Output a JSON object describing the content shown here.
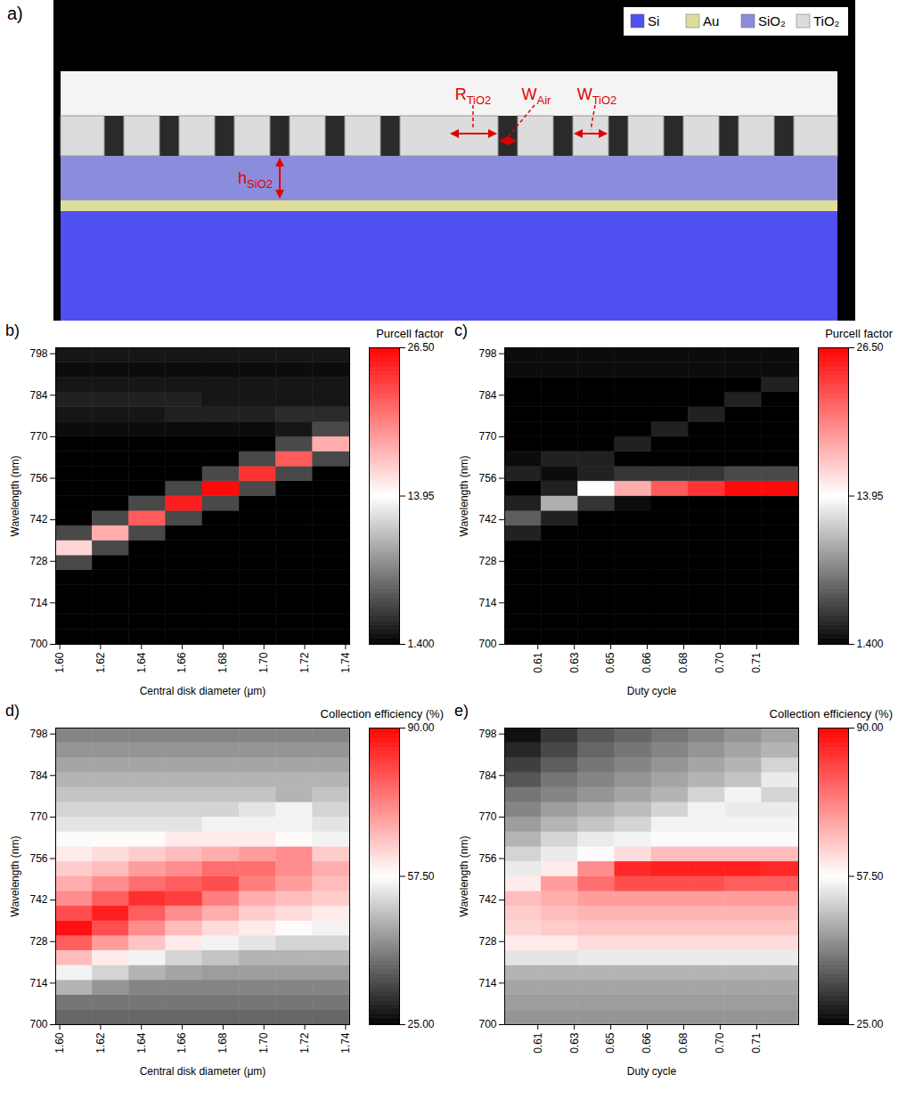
{
  "diagram": {
    "label": "a)",
    "legend": [
      {
        "label": "Si",
        "color": "#5050f0"
      },
      {
        "label": "Au",
        "color": "#dede9a"
      },
      {
        "label": "SiO₂",
        "color": "#8c8cdc"
      },
      {
        "label": "TiO₂",
        "color": "#dcdcdc"
      }
    ],
    "dimensions": [
      {
        "symbol": "R",
        "subscript": "TiO2"
      },
      {
        "symbol": "W",
        "subscript": "Air"
      },
      {
        "symbol": "W",
        "subscript": "TiO2"
      },
      {
        "symbol": "h",
        "subscript": "SiO2"
      }
    ]
  },
  "chart_data": [
    {
      "type": "heatmap",
      "panel_label": "b)",
      "title": "Purcell factor",
      "x_label": "Central disk diameter (μm)",
      "y_label": "Wavelength (nm)",
      "xlim": [
        1.598,
        1.742
      ],
      "xticks": [
        {
          "value": 1.6,
          "label": "1.60"
        },
        1.62,
        1.64,
        1.66,
        1.68,
        {
          "value": 1.7,
          "label": "1.70"
        },
        1.72,
        1.74
      ],
      "ylim": [
        700,
        800
      ],
      "yticks": [
        700,
        714,
        728,
        742,
        756,
        770,
        784,
        798
      ],
      "color_range": [
        1.4,
        26.5
      ],
      "color_ticks": [
        {
          "value": 1.4,
          "label": "1.400"
        },
        13.95,
        {
          "value": 26.5,
          "label": "26.50"
        }
      ],
      "cells": {
        "x_edges": [
          1.598,
          1.616,
          1.634,
          1.652,
          1.67,
          1.688,
          1.706,
          1.724,
          1.742
        ],
        "y_edges": [
          700,
          705,
          710,
          715,
          720,
          725,
          730,
          735,
          740,
          745,
          750,
          755,
          760,
          765,
          770,
          775,
          780,
          785,
          790,
          795,
          800
        ],
        "values": [
          [
            1.4,
            1.4,
            1.4,
            1.4,
            1.4,
            1.4,
            1.4,
            1.4
          ],
          [
            1.4,
            1.4,
            1.4,
            1.4,
            1.4,
            1.4,
            1.4,
            1.4
          ],
          [
            1.4,
            1.4,
            1.4,
            1.4,
            1.4,
            1.4,
            1.4,
            1.4
          ],
          [
            1.4,
            1.4,
            1.4,
            1.4,
            1.4,
            1.4,
            1.4,
            1.4
          ],
          [
            1.4,
            1.4,
            1.4,
            1.4,
            1.4,
            1.4,
            1.4,
            1.4
          ],
          [
            5,
            1.4,
            1.4,
            1.4,
            1.4,
            1.4,
            1.4,
            1.4
          ],
          [
            16,
            5,
            1.4,
            1.4,
            1.4,
            1.4,
            1.4,
            1.4
          ],
          [
            5,
            18,
            5,
            1.4,
            1.4,
            1.4,
            1.4,
            1.4
          ],
          [
            1.4,
            5,
            22,
            5,
            1.4,
            1.4,
            1.4,
            1.4
          ],
          [
            1.4,
            1.4,
            5,
            25,
            5,
            1.4,
            1.4,
            1.4
          ],
          [
            1.4,
            1.4,
            1.4,
            5,
            26,
            5,
            1.4,
            1.4
          ],
          [
            1.4,
            1.4,
            1.4,
            1.4,
            5,
            24,
            5,
            1.4
          ],
          [
            1.4,
            1.4,
            1.4,
            1.4,
            1.4,
            5,
            22,
            5
          ],
          [
            1.4,
            1.4,
            1.4,
            1.4,
            1.4,
            1.4,
            5,
            18
          ],
          [
            2,
            2,
            2,
            2,
            2,
            2,
            2.5,
            5
          ],
          [
            2.5,
            2.5,
            2.5,
            3,
            3,
            3,
            3.5,
            3.5
          ],
          [
            3,
            3,
            3,
            3,
            2.5,
            2.5,
            2.5,
            2.5
          ],
          [
            2.5,
            2.5,
            2.5,
            2.5,
            2.5,
            2.5,
            2.5,
            2.5
          ],
          [
            2,
            2,
            2,
            2,
            2,
            2,
            2,
            2
          ],
          [
            2.5,
            2.5,
            2.5,
            2.5,
            2.5,
            2.5,
            2.5,
            2.5
          ]
        ]
      }
    },
    {
      "type": "heatmap",
      "panel_label": "c)",
      "title": "Purcell factor",
      "x_label": "Duty cycle",
      "y_label": "Wavelength (nm)",
      "xlim": [
        0.598,
        0.731
      ],
      "xticks": [
        {
          "value": 0.613,
          "label": "0.61"
        },
        {
          "value": 0.6295,
          "label": "0.63"
        },
        {
          "value": 0.646,
          "label": "0.65"
        },
        {
          "value": 0.6625,
          "label": "0.66"
        },
        {
          "value": 0.679,
          "label": "0.68"
        },
        {
          "value": 0.6955,
          "label": "0.70"
        },
        {
          "value": 0.712,
          "label": "0.71"
        }
      ],
      "ylim": [
        700,
        800
      ],
      "yticks": [
        700,
        714,
        728,
        742,
        756,
        770,
        784,
        798
      ],
      "color_range": [
        1.4,
        26.5
      ],
      "color_ticks": [
        {
          "value": 1.4,
          "label": "1.400"
        },
        13.95,
        {
          "value": 26.5,
          "label": "26.50"
        }
      ],
      "cells": {
        "x_edges": [
          0.598,
          0.6146,
          0.6313,
          0.6479,
          0.6645,
          0.6811,
          0.6978,
          0.7144,
          0.731
        ],
        "y_edges": [
          700,
          705,
          710,
          715,
          720,
          725,
          730,
          735,
          740,
          745,
          750,
          755,
          760,
          765,
          770,
          775,
          780,
          785,
          790,
          795,
          800
        ],
        "values": [
          [
            1.4,
            1.4,
            1.4,
            1.4,
            1.4,
            1.4,
            1.4,
            1.4
          ],
          [
            1.4,
            1.4,
            1.4,
            1.4,
            1.4,
            1.4,
            1.4,
            1.4
          ],
          [
            1.4,
            1.4,
            1.4,
            1.4,
            1.4,
            1.4,
            1.4,
            1.4
          ],
          [
            1.4,
            1.4,
            1.4,
            1.4,
            1.4,
            1.4,
            1.4,
            1.4
          ],
          [
            1.4,
            1.4,
            1.4,
            1.4,
            1.4,
            1.4,
            1.4,
            1.4
          ],
          [
            1.4,
            1.4,
            1.4,
            1.4,
            1.4,
            1.4,
            1.4,
            1.4
          ],
          [
            1.4,
            1.4,
            1.4,
            1.4,
            1.4,
            1.4,
            1.4,
            1.4
          ],
          [
            3,
            1.4,
            1.4,
            1.4,
            1.4,
            1.4,
            1.4,
            1.4
          ],
          [
            6,
            3,
            1.4,
            1.4,
            1.4,
            1.4,
            1.4,
            1.4
          ],
          [
            3,
            10,
            4,
            2,
            1.4,
            1.4,
            1.4,
            1.4
          ],
          [
            1.4,
            3,
            14,
            18,
            22,
            24,
            26,
            26
          ],
          [
            3,
            2,
            3,
            4,
            4,
            4,
            5,
            5
          ],
          [
            2,
            3,
            3,
            1.4,
            1.4,
            1.4,
            1.4,
            1.4
          ],
          [
            1.4,
            1.4,
            1.4,
            3,
            1.4,
            1.4,
            1.4,
            1.4
          ],
          [
            1.4,
            1.4,
            1.4,
            1.4,
            3,
            1.4,
            1.4,
            1.4
          ],
          [
            1.4,
            1.4,
            1.4,
            1.4,
            1.4,
            3,
            1.4,
            1.4
          ],
          [
            1.4,
            1.4,
            1.4,
            1.4,
            1.4,
            1.4,
            3,
            1.4
          ],
          [
            1.4,
            1.4,
            1.4,
            1.4,
            1.4,
            1.4,
            1.4,
            3
          ],
          [
            2,
            2,
            2,
            2,
            2,
            2,
            2,
            2
          ],
          [
            2,
            2,
            2,
            2,
            2,
            2,
            2,
            2
          ]
        ]
      }
    },
    {
      "type": "heatmap",
      "panel_label": "d)",
      "title": "Collection efficiency (%)",
      "x_label": "Central disk diameter (μm)",
      "y_label": "Wavelength (nm)",
      "xlim": [
        1.598,
        1.742
      ],
      "xticks": [
        {
          "value": 1.6,
          "label": "1.60"
        },
        1.62,
        1.64,
        1.66,
        1.68,
        {
          "value": 1.7,
          "label": "1.70"
        },
        1.72,
        1.74
      ],
      "ylim": [
        700,
        800
      ],
      "yticks": [
        700,
        714,
        728,
        742,
        756,
        770,
        784,
        798
      ],
      "color_range": [
        25,
        90
      ],
      "color_ticks": [
        {
          "value": 25,
          "label": "25.00"
        },
        {
          "value": 57.5,
          "label": "57.50"
        },
        {
          "value": 90,
          "label": "90.00"
        }
      ],
      "cells": {
        "x_edges": [
          1.598,
          1.616,
          1.634,
          1.652,
          1.67,
          1.688,
          1.706,
          1.724,
          1.742
        ],
        "y_edges": [
          700,
          705,
          710,
          715,
          720,
          725,
          730,
          735,
          740,
          745,
          750,
          755,
          760,
          765,
          770,
          775,
          780,
          785,
          790,
          795,
          800
        ],
        "values": [
          [
            38,
            38,
            38,
            38,
            38,
            38,
            38,
            38
          ],
          [
            40,
            40,
            40,
            40,
            40,
            40,
            40,
            40
          ],
          [
            48,
            44,
            42,
            42,
            42,
            42,
            42,
            42
          ],
          [
            56,
            52,
            48,
            46,
            45,
            45,
            45,
            45
          ],
          [
            66,
            60,
            56,
            52,
            50,
            48,
            48,
            48
          ],
          [
            78,
            70,
            65,
            60,
            56,
            54,
            52,
            52
          ],
          [
            88,
            80,
            72,
            66,
            62,
            60,
            58,
            56
          ],
          [
            80,
            86,
            78,
            72,
            68,
            64,
            62,
            60
          ],
          [
            72,
            78,
            84,
            82,
            74,
            68,
            66,
            64
          ],
          [
            68,
            72,
            76,
            78,
            80,
            74,
            70,
            66
          ],
          [
            64,
            66,
            70,
            72,
            76,
            76,
            72,
            68
          ],
          [
            60,
            62,
            64,
            66,
            68,
            70,
            72,
            64
          ],
          [
            57,
            58,
            58,
            60,
            60,
            60,
            58,
            56
          ],
          [
            54,
            54,
            54,
            54,
            56,
            56,
            56,
            54
          ],
          [
            52,
            52,
            52,
            52,
            52,
            54,
            56,
            52
          ],
          [
            50,
            50,
            50,
            50,
            50,
            50,
            48,
            50
          ],
          [
            48,
            48,
            48,
            48,
            48,
            48,
            48,
            48
          ],
          [
            46,
            46,
            46,
            46,
            46,
            46,
            46,
            46
          ],
          [
            44,
            44,
            44,
            44,
            44,
            44,
            44,
            44
          ],
          [
            42,
            42,
            42,
            42,
            42,
            42,
            42,
            42
          ]
        ]
      }
    },
    {
      "type": "heatmap",
      "panel_label": "e)",
      "title": "Collection efficiency (%)",
      "x_label": "Duty cycle",
      "y_label": "Wavelength (nm)",
      "xlim": [
        0.598,
        0.731
      ],
      "xticks": [
        {
          "value": 0.613,
          "label": "0.61"
        },
        {
          "value": 0.6295,
          "label": "0.63"
        },
        {
          "value": 0.646,
          "label": "0.65"
        },
        {
          "value": 0.6625,
          "label": "0.66"
        },
        {
          "value": 0.679,
          "label": "0.68"
        },
        {
          "value": 0.6955,
          "label": "0.70"
        },
        {
          "value": 0.712,
          "label": "0.71"
        }
      ],
      "ylim": [
        700,
        800
      ],
      "yticks": [
        700,
        714,
        728,
        742,
        756,
        770,
        784,
        798
      ],
      "color_range": [
        25,
        90
      ],
      "color_ticks": [
        {
          "value": 25,
          "label": "25.00"
        },
        {
          "value": 57.5,
          "label": "57.50"
        },
        {
          "value": 90,
          "label": "90.00"
        }
      ],
      "cells": {
        "x_edges": [
          0.598,
          0.6146,
          0.6313,
          0.6479,
          0.6645,
          0.6811,
          0.6978,
          0.7144,
          0.731
        ],
        "y_edges": [
          700,
          705,
          710,
          715,
          720,
          725,
          730,
          735,
          740,
          745,
          750,
          755,
          760,
          765,
          770,
          775,
          780,
          785,
          790,
          795,
          800
        ],
        "values": [
          [
            44,
            44,
            44,
            44,
            44,
            44,
            44,
            44
          ],
          [
            45,
            45,
            45,
            45,
            45,
            45,
            45,
            45
          ],
          [
            46,
            46,
            46,
            46,
            46,
            46,
            46,
            46
          ],
          [
            48,
            48,
            48,
            48,
            48,
            48,
            48,
            48
          ],
          [
            54,
            54,
            55,
            55,
            55,
            55,
            55,
            55
          ],
          [
            60,
            60,
            62,
            62,
            62,
            62,
            62,
            62
          ],
          [
            63,
            64,
            65,
            65,
            65,
            65,
            65,
            65
          ],
          [
            64,
            66,
            67,
            67,
            67,
            67,
            67,
            67
          ],
          [
            66,
            68,
            70,
            70,
            70,
            70,
            70,
            70
          ],
          [
            60,
            70,
            76,
            80,
            80,
            80,
            78,
            78
          ],
          [
            55,
            60,
            72,
            85,
            86,
            86,
            86,
            85
          ],
          [
            52,
            55,
            58,
            62,
            66,
            66,
            66,
            66
          ],
          [
            48,
            52,
            55,
            56,
            57,
            57,
            57,
            57
          ],
          [
            45,
            48,
            50,
            52,
            56,
            56,
            56,
            56
          ],
          [
            42,
            45,
            47,
            49,
            52,
            56,
            55,
            55
          ],
          [
            40,
            42,
            44,
            46,
            48,
            52,
            56,
            52
          ],
          [
            36,
            40,
            42,
            44,
            46,
            48,
            50,
            55
          ],
          [
            33,
            37,
            40,
            42,
            44,
            46,
            48,
            52
          ],
          [
            30,
            34,
            38,
            40,
            42,
            44,
            46,
            48
          ],
          [
            27,
            32,
            36,
            38,
            40,
            42,
            44,
            46
          ]
        ]
      }
    }
  ]
}
